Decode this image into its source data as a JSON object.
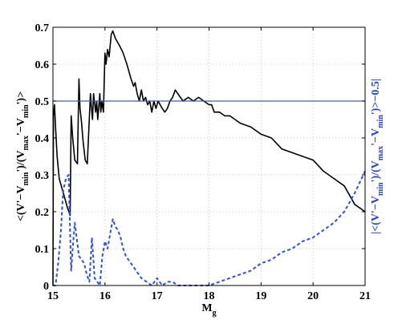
{
  "chart_data": {
    "type": "line",
    "xlabel": {
      "base": "M",
      "sub": "g"
    },
    "ylabel_left": [
      {
        "t": "<(V'−V"
      },
      {
        "t": "min",
        "sub": true
      },
      {
        "t": "')/(V"
      },
      {
        "t": "max",
        "sub": true
      },
      {
        "t": "'−V"
      },
      {
        "t": "min",
        "sub": true
      },
      {
        "t": "')>"
      }
    ],
    "ylabel_right": [
      {
        "t": "|<(V'−V"
      },
      {
        "t": "min",
        "sub": true
      },
      {
        "t": "')/(V"
      },
      {
        "t": "max",
        "sub": true
      },
      {
        "t": "'−V"
      },
      {
        "t": "min",
        "sub": true
      },
      {
        "t": "')>−0.5|"
      }
    ],
    "xlim": [
      15,
      21
    ],
    "ylim": [
      0,
      0.7
    ],
    "xticks": [
      15,
      16,
      17,
      18,
      19,
      20,
      21
    ],
    "xtick_labels": [
      "15",
      "16",
      "17",
      "18",
      "19",
      "20",
      "21"
    ],
    "yticks": [
      0,
      0.1,
      0.2,
      0.3,
      0.4,
      0.5,
      0.6,
      0.7
    ],
    "ytick_labels": [
      "0",
      "0.1",
      "0.2",
      "0.3",
      "0.4",
      "0.5",
      "0.6",
      "0.7"
    ],
    "grid": true,
    "colors": {
      "left_axis": "#000000",
      "right_axis": "#1f3fff",
      "dashed_series": "#2a4dff",
      "reference_line": "#3a5bd8"
    },
    "reference_line": {
      "y": 0.5
    },
    "series": [
      {
        "style": "solid",
        "x": [
          15.0,
          15.01,
          15.03,
          15.05,
          15.08,
          15.12,
          15.2,
          15.28,
          15.33,
          15.35,
          15.38,
          15.42,
          15.47,
          15.5,
          15.52,
          15.55,
          15.58,
          15.62,
          15.66,
          15.72,
          15.74,
          15.76,
          15.78,
          15.82,
          15.84,
          15.86,
          15.9,
          15.92,
          15.94,
          15.97,
          16.0,
          16.02,
          16.05,
          16.08,
          16.12,
          16.15,
          16.2,
          16.28,
          16.35,
          16.42,
          16.5,
          16.55,
          16.58,
          16.62,
          16.66,
          16.7,
          16.74,
          16.78,
          16.82,
          16.86,
          16.9,
          16.94,
          16.98,
          17.02,
          17.06,
          17.1,
          17.15,
          17.2,
          17.25,
          17.3,
          17.35,
          17.4,
          17.5,
          17.6,
          17.7,
          17.8,
          17.9,
          18.0,
          18.05,
          18.1,
          18.2,
          18.3,
          18.4,
          18.5,
          18.6,
          18.8,
          19.0,
          19.2,
          19.4,
          19.6,
          19.8,
          20.0,
          20.2,
          20.4,
          20.6,
          20.8,
          21.0
        ],
        "y": [
          0.0,
          0.46,
          0.49,
          0.43,
          0.35,
          0.29,
          0.25,
          0.21,
          0.19,
          0.46,
          0.4,
          0.34,
          0.33,
          0.56,
          0.48,
          0.44,
          0.39,
          0.34,
          0.33,
          0.52,
          0.48,
          0.45,
          0.52,
          0.47,
          0.5,
          0.45,
          0.52,
          0.47,
          0.5,
          0.47,
          0.63,
          0.6,
          0.64,
          0.62,
          0.68,
          0.69,
          0.67,
          0.65,
          0.63,
          0.6,
          0.56,
          0.54,
          0.55,
          0.52,
          0.5,
          0.53,
          0.5,
          0.51,
          0.49,
          0.5,
          0.47,
          0.5,
          0.48,
          0.5,
          0.49,
          0.48,
          0.47,
          0.48,
          0.5,
          0.51,
          0.53,
          0.52,
          0.5,
          0.51,
          0.5,
          0.51,
          0.5,
          0.49,
          0.49,
          0.47,
          0.47,
          0.46,
          0.46,
          0.45,
          0.44,
          0.43,
          0.41,
          0.4,
          0.37,
          0.36,
          0.35,
          0.34,
          0.31,
          0.29,
          0.27,
          0.22,
          0.2
        ]
      },
      {
        "style": "dashed",
        "x": [
          15.0,
          15.05,
          15.1,
          15.15,
          15.18,
          15.2,
          15.25,
          15.3,
          15.35,
          15.38,
          15.42,
          15.5,
          15.6,
          15.65,
          15.7,
          15.75,
          15.8,
          15.9,
          15.95,
          16.0,
          16.05,
          16.1,
          16.15,
          16.2,
          16.25,
          16.3,
          16.35,
          16.4,
          16.5,
          16.6,
          16.7,
          16.8,
          16.9,
          17.0,
          17.1,
          17.2,
          17.3,
          17.4,
          17.6,
          17.8,
          18.0,
          18.2,
          18.4,
          18.6,
          18.8,
          19.0,
          19.2,
          19.4,
          19.6,
          19.8,
          20.0,
          20.2,
          20.4,
          20.6,
          20.8,
          21.0
        ],
        "y": [
          0.0,
          0.0,
          0.06,
          0.14,
          0.22,
          0.26,
          0.29,
          0.3,
          0.04,
          0.1,
          0.17,
          0.08,
          0.06,
          0.03,
          0.01,
          0.13,
          0.02,
          0.0,
          0.08,
          0.12,
          0.1,
          0.14,
          0.18,
          0.16,
          0.15,
          0.13,
          0.1,
          0.08,
          0.06,
          0.04,
          0.02,
          0.01,
          0.0,
          0.02,
          0.0,
          0.01,
          0.01,
          0.0,
          0.0,
          0.0,
          0.0,
          0.01,
          0.02,
          0.03,
          0.04,
          0.06,
          0.07,
          0.09,
          0.1,
          0.12,
          0.13,
          0.15,
          0.17,
          0.2,
          0.25,
          0.31
        ]
      }
    ]
  }
}
